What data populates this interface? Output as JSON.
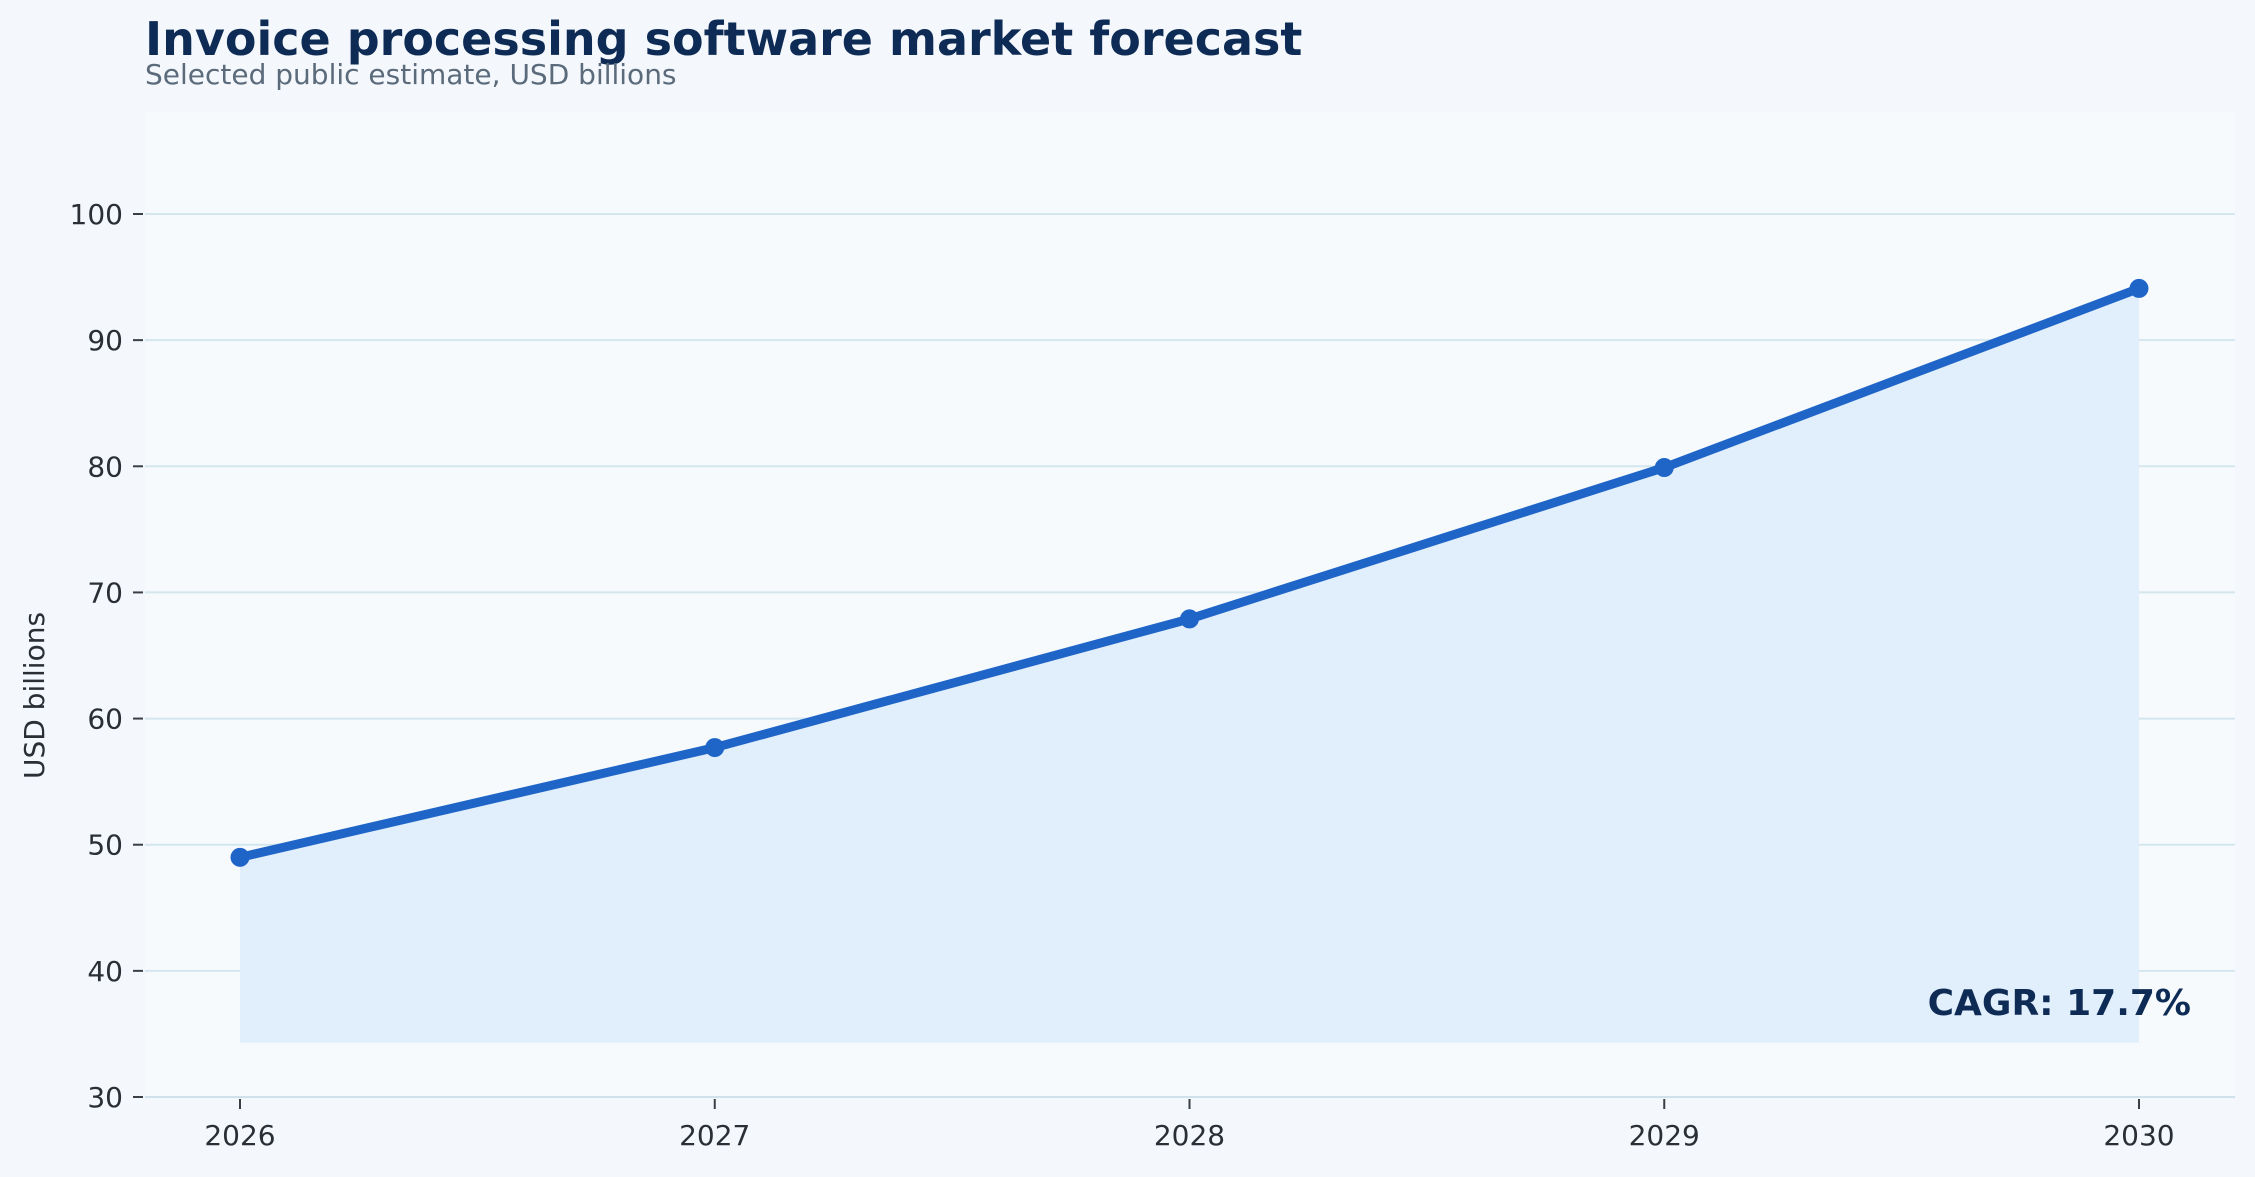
{
  "chart_data": {
    "type": "area",
    "title": "Invoice processing software market forecast",
    "subtitle": "Selected public estimate, USD billions",
    "xlabel": "",
    "ylabel": "USD billions",
    "x": [
      2026,
      2027,
      2028,
      2029,
      2030
    ],
    "x_tick_labels": [
      "2026",
      "2027",
      "2028",
      "2029",
      "2030"
    ],
    "series": [
      {
        "values": [
          49.0,
          57.7,
          67.9,
          79.9,
          94.1
        ]
      }
    ],
    "area_baseline": 34.3,
    "ylim": [
      30,
      107
    ],
    "y_ticks": [
      30,
      40,
      50,
      60,
      70,
      80,
      90,
      100
    ],
    "grid": "horizontal",
    "annotation": "CAGR: 17.7%",
    "annotation_position": "bottom-right",
    "colors": {
      "line": "#1f65c8",
      "area": "#e1eefb",
      "plot_background": "#f6fafd",
      "page_background": "#f4f8fc",
      "grid": "#d4e6ee",
      "title": "#0d2b55",
      "subtitle": "#5b6b7b",
      "tick_text": "#2a2f36"
    }
  }
}
